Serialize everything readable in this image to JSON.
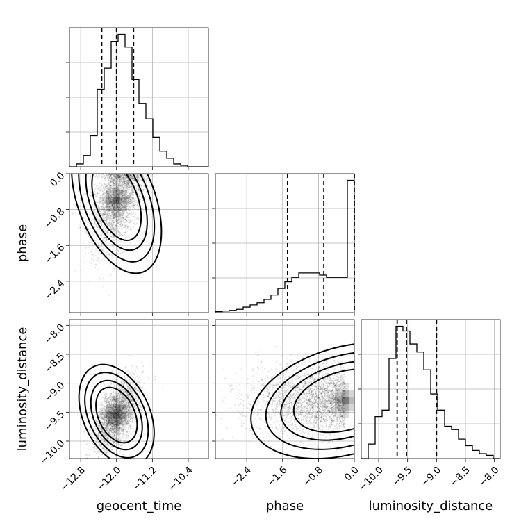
{
  "chart_data": {
    "type": "corner",
    "grid": true,
    "parameters": [
      "geocent_time",
      "phase",
      "luminosity_distance"
    ],
    "labels": {
      "geocent_time": "geocent_time",
      "phase": "phase",
      "luminosity_distance": "luminosity_distance"
    },
    "ticks": {
      "geocent_time": {
        "values": [
          -12.8,
          -12.0,
          -11.2,
          -10.4
        ],
        "labels": [
          "−12.8",
          "−12.0",
          "−11.2",
          "−10.4"
        ],
        "range": [
          -13.05,
          -9.95
        ]
      },
      "phase": {
        "values": [
          -2.4,
          -1.6,
          -0.8,
          0.0
        ],
        "labels": [
          "−2.4",
          "−1.6",
          "−0.8",
          "0.0"
        ],
        "range": [
          -3.1,
          0.0
        ]
      },
      "luminosity_distance": {
        "values": [
          -10.0,
          -9.5,
          -9.0,
          -8.5,
          -8.0
        ],
        "labels": [
          "−10.0",
          "−9.5",
          "−9.0",
          "−8.5",
          "−8.0"
        ],
        "range": [
          -10.3,
          -7.9
        ]
      }
    },
    "histograms": {
      "geocent_time": {
        "bin_edges": [
          -13.05,
          -12.895,
          -12.74,
          -12.585,
          -12.43,
          -12.275,
          -12.12,
          -11.965,
          -11.81,
          -11.655,
          -11.5,
          -11.345,
          -11.19,
          -11.035,
          -10.88,
          -10.725,
          -10.57,
          -10.415,
          -10.26,
          -10.105,
          -9.95
        ],
        "counts": [
          0,
          2,
          8,
          22,
          55,
          70,
          89,
          94,
          85,
          62,
          45,
          34,
          21,
          11,
          6,
          2,
          1,
          0,
          0,
          0
        ],
        "quantiles": [
          -12.33,
          -12.0,
          -11.62
        ]
      },
      "phase": {
        "bin_edges": [
          -3.1,
          -2.945,
          -2.79,
          -2.635,
          -2.48,
          -2.325,
          -2.17,
          -2.015,
          -1.86,
          -1.705,
          -1.55,
          -1.395,
          -1.24,
          -1.085,
          -0.93,
          -0.775,
          -0.62,
          -0.465,
          -0.31,
          -0.155,
          0.0
        ],
        "counts": [
          0.5,
          0.7,
          1,
          1.5,
          2.5,
          3.5,
          4.5,
          6,
          8,
          11,
          14,
          16,
          18,
          18,
          18,
          17,
          16,
          16,
          16,
          60
        ],
        "quantiles": [
          -1.49,
          -0.68,
          0.0
        ]
      },
      "luminosity_distance": {
        "bin_edges": [
          -10.3,
          -10.18,
          -10.06,
          -9.94,
          -9.82,
          -9.7,
          -9.58,
          -9.46,
          -9.34,
          -9.22,
          -9.1,
          -8.98,
          -8.86,
          -8.74,
          -8.62,
          -8.5,
          -8.38,
          -8.26,
          -8.14,
          -8.02,
          -7.9
        ],
        "counts": [
          0,
          9,
          26,
          30,
          62,
          82,
          79,
          71,
          66,
          55,
          40,
          30,
          20,
          18,
          12,
          8,
          5,
          3,
          2,
          0
        ],
        "quantiles": [
          -9.68,
          -9.52,
          -9.0
        ]
      }
    },
    "pair_plots": [
      {
        "x": "geocent_time",
        "y": "phase",
        "peak": [
          -12.0,
          -0.6
        ]
      },
      {
        "x": "geocent_time",
        "y": "luminosity_distance",
        "peak": [
          -12.0,
          -9.55
        ]
      },
      {
        "x": "phase",
        "y": "luminosity_distance",
        "peak": [
          -0.2,
          -9.3
        ]
      }
    ]
  }
}
